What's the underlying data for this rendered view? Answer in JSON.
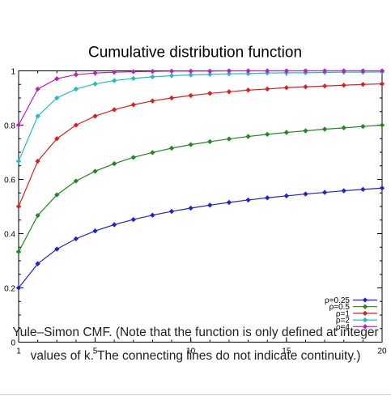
{
  "chart_data": {
    "type": "line",
    "title": "Cumulative distribution function",
    "xlabel": "",
    "ylabel": "",
    "xlim": [
      1,
      20
    ],
    "ylim": [
      0,
      1
    ],
    "x_ticks": [
      1,
      5,
      10,
      15,
      20
    ],
    "y_ticks": [
      0,
      0.2,
      0.4,
      0.6,
      0.8,
      1
    ],
    "y_tick_labels": [
      "0",
      "0.2",
      "0.4",
      "0.6",
      "0.8",
      "1"
    ],
    "grid": false,
    "legend_position": "bottom-right",
    "x": [
      1,
      2,
      3,
      4,
      5,
      6,
      7,
      8,
      9,
      10,
      11,
      12,
      13,
      14,
      15,
      16,
      17,
      18,
      19,
      20
    ],
    "series": [
      {
        "name": "ρ=0.25",
        "color": "#1f1fdf",
        "values": [
          0.2,
          0.289,
          0.343,
          0.381,
          0.41,
          0.433,
          0.452,
          0.468,
          0.482,
          0.494,
          0.505,
          0.515,
          0.524,
          0.532,
          0.539,
          0.546,
          0.552,
          0.558,
          0.563,
          0.568
        ]
      },
      {
        "name": "ρ=0.5",
        "color": "#1f8a1f",
        "values": [
          0.333,
          0.467,
          0.543,
          0.594,
          0.63,
          0.658,
          0.681,
          0.699,
          0.715,
          0.728,
          0.739,
          0.749,
          0.758,
          0.766,
          0.773,
          0.779,
          0.785,
          0.79,
          0.795,
          0.8
        ]
      },
      {
        "name": "ρ=1",
        "color": "#e01f1f",
        "values": [
          0.5,
          0.667,
          0.75,
          0.8,
          0.833,
          0.857,
          0.875,
          0.889,
          0.9,
          0.909,
          0.917,
          0.923,
          0.929,
          0.933,
          0.938,
          0.941,
          0.944,
          0.947,
          0.95,
          0.952
        ]
      },
      {
        "name": "ρ=2",
        "color": "#1fbfbf",
        "values": [
          0.667,
          0.833,
          0.9,
          0.933,
          0.952,
          0.964,
          0.972,
          0.978,
          0.982,
          0.985,
          0.987,
          0.989,
          0.99,
          0.992,
          0.993,
          0.993,
          0.994,
          0.995,
          0.995,
          0.996
        ]
      },
      {
        "name": "ρ=4",
        "color": "#bf1fbf",
        "values": [
          0.8,
          0.933,
          0.971,
          0.986,
          0.992,
          0.995,
          0.997,
          0.998,
          0.999,
          0.999,
          0.999,
          1.0,
          1.0,
          1.0,
          1.0,
          1.0,
          1.0,
          1.0,
          1.0,
          1.0
        ]
      }
    ]
  },
  "caption": {
    "text": "Yule–Simon CMF. (Note that the function is only defined at integer values of k. The connecting lines do not indicate continuity.)"
  }
}
